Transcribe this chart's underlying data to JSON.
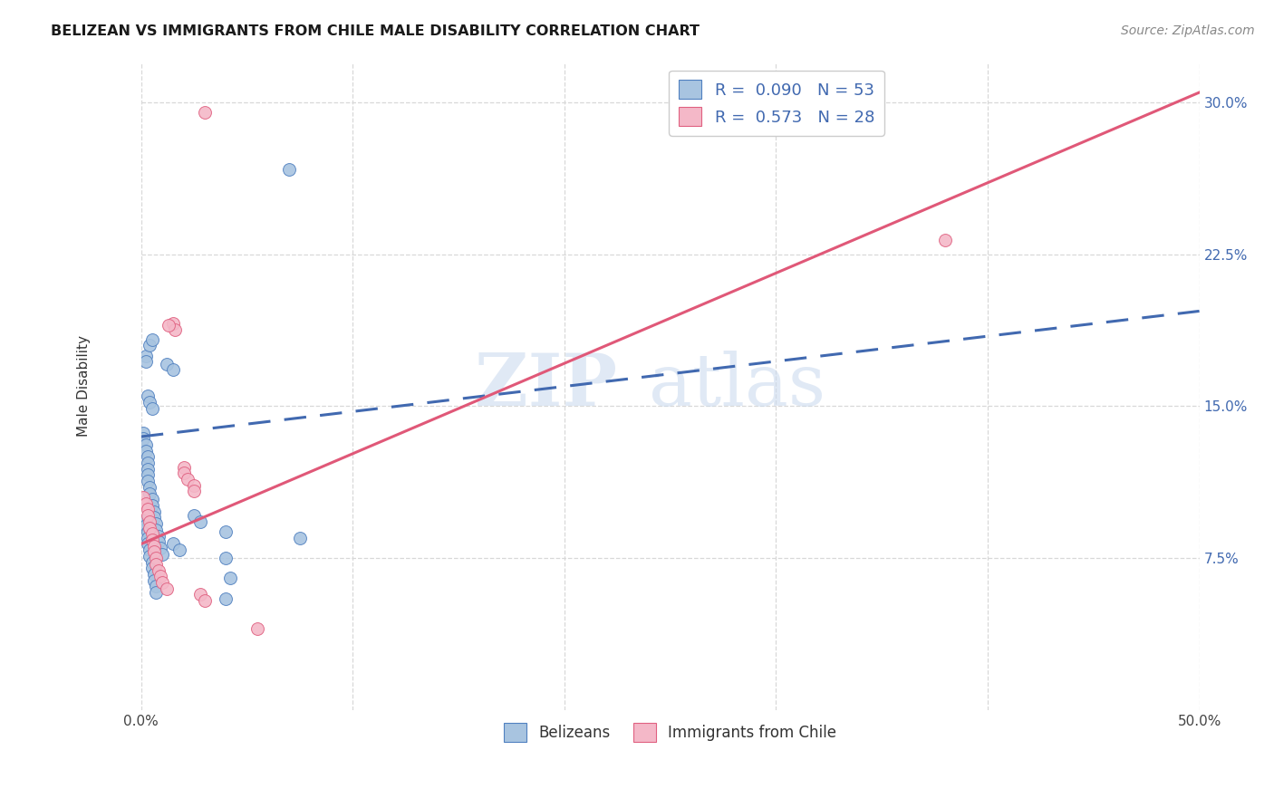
{
  "title": "BELIZEAN VS IMMIGRANTS FROM CHILE MALE DISABILITY CORRELATION CHART",
  "source": "Source: ZipAtlas.com",
  "ylabel": "Male Disability",
  "xlim": [
    0.0,
    0.5
  ],
  "ylim": [
    0.0,
    0.32
  ],
  "xticks": [
    0.0,
    0.1,
    0.2,
    0.3,
    0.4,
    0.5
  ],
  "xticklabels": [
    "0.0%",
    "",
    "",
    "",
    "",
    "50.0%"
  ],
  "yticks": [
    0.075,
    0.15,
    0.225,
    0.3
  ],
  "yticklabels": [
    "7.5%",
    "15.0%",
    "22.5%",
    "30.0%"
  ],
  "blue_color": "#a8c4e0",
  "pink_color": "#f4b8c8",
  "blue_edge_color": "#5080c0",
  "pink_edge_color": "#e06080",
  "blue_trend_color": "#4169b0",
  "pink_trend_color": "#e05878",
  "blue_scatter": [
    [
      0.001,
      0.137
    ],
    [
      0.001,
      0.134
    ],
    [
      0.002,
      0.131
    ],
    [
      0.002,
      0.128
    ],
    [
      0.002,
      0.175
    ],
    [
      0.002,
      0.172
    ],
    [
      0.003,
      0.125
    ],
    [
      0.003,
      0.122
    ],
    [
      0.003,
      0.119
    ],
    [
      0.003,
      0.116
    ],
    [
      0.003,
      0.113
    ],
    [
      0.004,
      0.11
    ],
    [
      0.004,
      0.107
    ],
    [
      0.004,
      0.18
    ],
    [
      0.005,
      0.183
    ],
    [
      0.005,
      0.104
    ],
    [
      0.005,
      0.101
    ],
    [
      0.006,
      0.098
    ],
    [
      0.006,
      0.095
    ],
    [
      0.007,
      0.092
    ],
    [
      0.007,
      0.089
    ],
    [
      0.008,
      0.086
    ],
    [
      0.008,
      0.083
    ],
    [
      0.009,
      0.08
    ],
    [
      0.01,
      0.077
    ],
    [
      0.012,
      0.171
    ],
    [
      0.015,
      0.168
    ],
    [
      0.003,
      0.155
    ],
    [
      0.004,
      0.152
    ],
    [
      0.005,
      0.149
    ],
    [
      0.002,
      0.094
    ],
    [
      0.002,
      0.091
    ],
    [
      0.003,
      0.088
    ],
    [
      0.003,
      0.085
    ],
    [
      0.003,
      0.082
    ],
    [
      0.004,
      0.079
    ],
    [
      0.004,
      0.076
    ],
    [
      0.005,
      0.073
    ],
    [
      0.005,
      0.07
    ],
    [
      0.006,
      0.067
    ],
    [
      0.006,
      0.064
    ],
    [
      0.007,
      0.061
    ],
    [
      0.007,
      0.058
    ],
    [
      0.015,
      0.082
    ],
    [
      0.018,
      0.079
    ],
    [
      0.025,
      0.096
    ],
    [
      0.028,
      0.093
    ],
    [
      0.04,
      0.088
    ],
    [
      0.07,
      0.267
    ],
    [
      0.04,
      0.075
    ],
    [
      0.042,
      0.065
    ],
    [
      0.075,
      0.085
    ],
    [
      0.04,
      0.055
    ]
  ],
  "pink_scatter": [
    [
      0.001,
      0.105
    ],
    [
      0.002,
      0.102
    ],
    [
      0.003,
      0.099
    ],
    [
      0.003,
      0.096
    ],
    [
      0.004,
      0.093
    ],
    [
      0.004,
      0.09
    ],
    [
      0.005,
      0.087
    ],
    [
      0.005,
      0.084
    ],
    [
      0.006,
      0.081
    ],
    [
      0.006,
      0.078
    ],
    [
      0.007,
      0.075
    ],
    [
      0.007,
      0.072
    ],
    [
      0.008,
      0.069
    ],
    [
      0.009,
      0.066
    ],
    [
      0.01,
      0.063
    ],
    [
      0.012,
      0.06
    ],
    [
      0.015,
      0.191
    ],
    [
      0.016,
      0.188
    ],
    [
      0.013,
      0.19
    ],
    [
      0.02,
      0.12
    ],
    [
      0.02,
      0.117
    ],
    [
      0.022,
      0.114
    ],
    [
      0.025,
      0.111
    ],
    [
      0.025,
      0.108
    ],
    [
      0.028,
      0.057
    ],
    [
      0.03,
      0.054
    ],
    [
      0.03,
      0.295
    ],
    [
      0.38,
      0.232
    ],
    [
      0.055,
      0.04
    ]
  ],
  "blue_trendline": [
    [
      0.0,
      0.135
    ],
    [
      0.5,
      0.197
    ]
  ],
  "pink_trendline": [
    [
      0.0,
      0.082
    ],
    [
      0.5,
      0.305
    ]
  ],
  "watermark_zip": "ZIP",
  "watermark_atlas": "atlas",
  "background": "#ffffff",
  "grid_color": "#d8d8d8"
}
